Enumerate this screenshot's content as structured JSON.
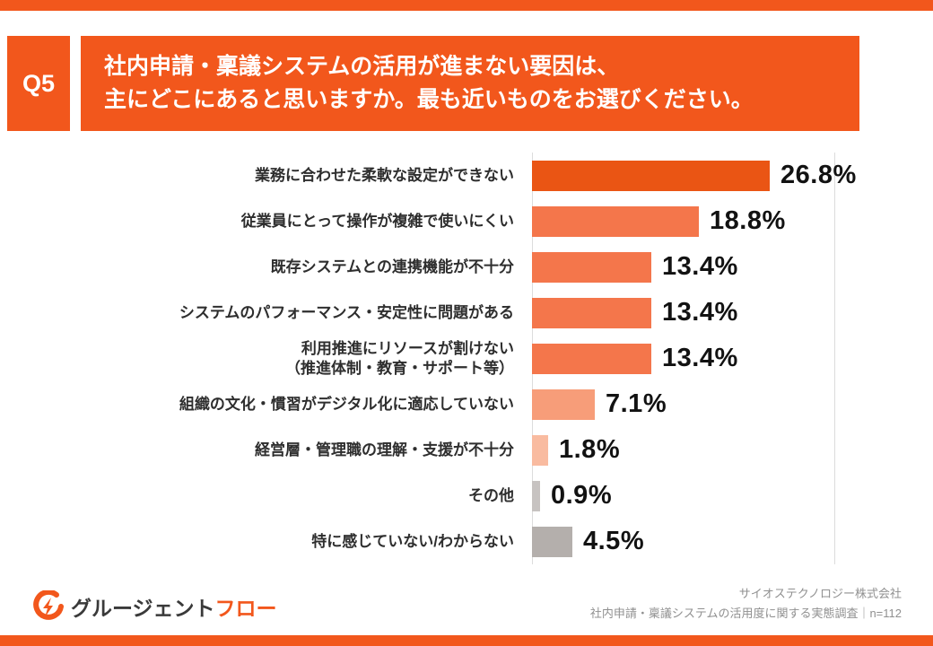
{
  "theme": {
    "accent": "#F2571C",
    "gridline_color": "#dcdcdc",
    "value_label_color": "#121212",
    "category_label_color": "#2e2e2e"
  },
  "header": {
    "q_label": "Q5",
    "title_line1": "社内申請・稟議システムの活用が進まない要因は、",
    "title_line2": "主にどこにあると思いますか。最も近いものをお選びください。"
  },
  "chart_data": {
    "type": "bar",
    "orientation": "horizontal",
    "title": "社内申請・稟議システムの活用が進まない要因は、主にどこにあると思いますか。最も近いものをお選びください。",
    "categories": [
      "業務に合わせた柔軟な設定ができない",
      "従業員にとって操作が複雑で使いにくい",
      "既存システムとの連携機能が不十分",
      "システムのパフォーマンス・安定性に問題がある",
      "利用推進にリソースが割けない\n（推進体制・教育・サポート等）",
      "組織の文化・慣習がデジタル化に適応していない",
      "経営層・管理職の理解・支援が不十分",
      "その他",
      "特に感じていない/わからない"
    ],
    "values": [
      26.8,
      18.8,
      13.4,
      13.4,
      13.4,
      7.1,
      1.8,
      0.9,
      4.5
    ],
    "value_labels": [
      "26.8%",
      "18.8%",
      "13.4%",
      "13.4%",
      "13.4%",
      "7.1%",
      "1.8%",
      "0.9%",
      "4.5%"
    ],
    "bar_colors": [
      "#EA5514",
      "#F4764B",
      "#F4764B",
      "#F4764B",
      "#F4764B",
      "#F79D79",
      "#F9BBA0",
      "#C7C3C1",
      "#B4AFAC"
    ],
    "xlim": [
      0,
      34
    ],
    "xlabel": "",
    "ylabel": "",
    "legend": "none",
    "grid": "vertical lines at axis start and right edge"
  },
  "footer": {
    "logo_text_main": "グルージェント",
    "logo_text_accent": "フロー",
    "credit_line1": "サイオステクノロジー株式会社",
    "credit_line2": "社内申請・稟議システムの活用度に関する実態調査｜n=112"
  }
}
